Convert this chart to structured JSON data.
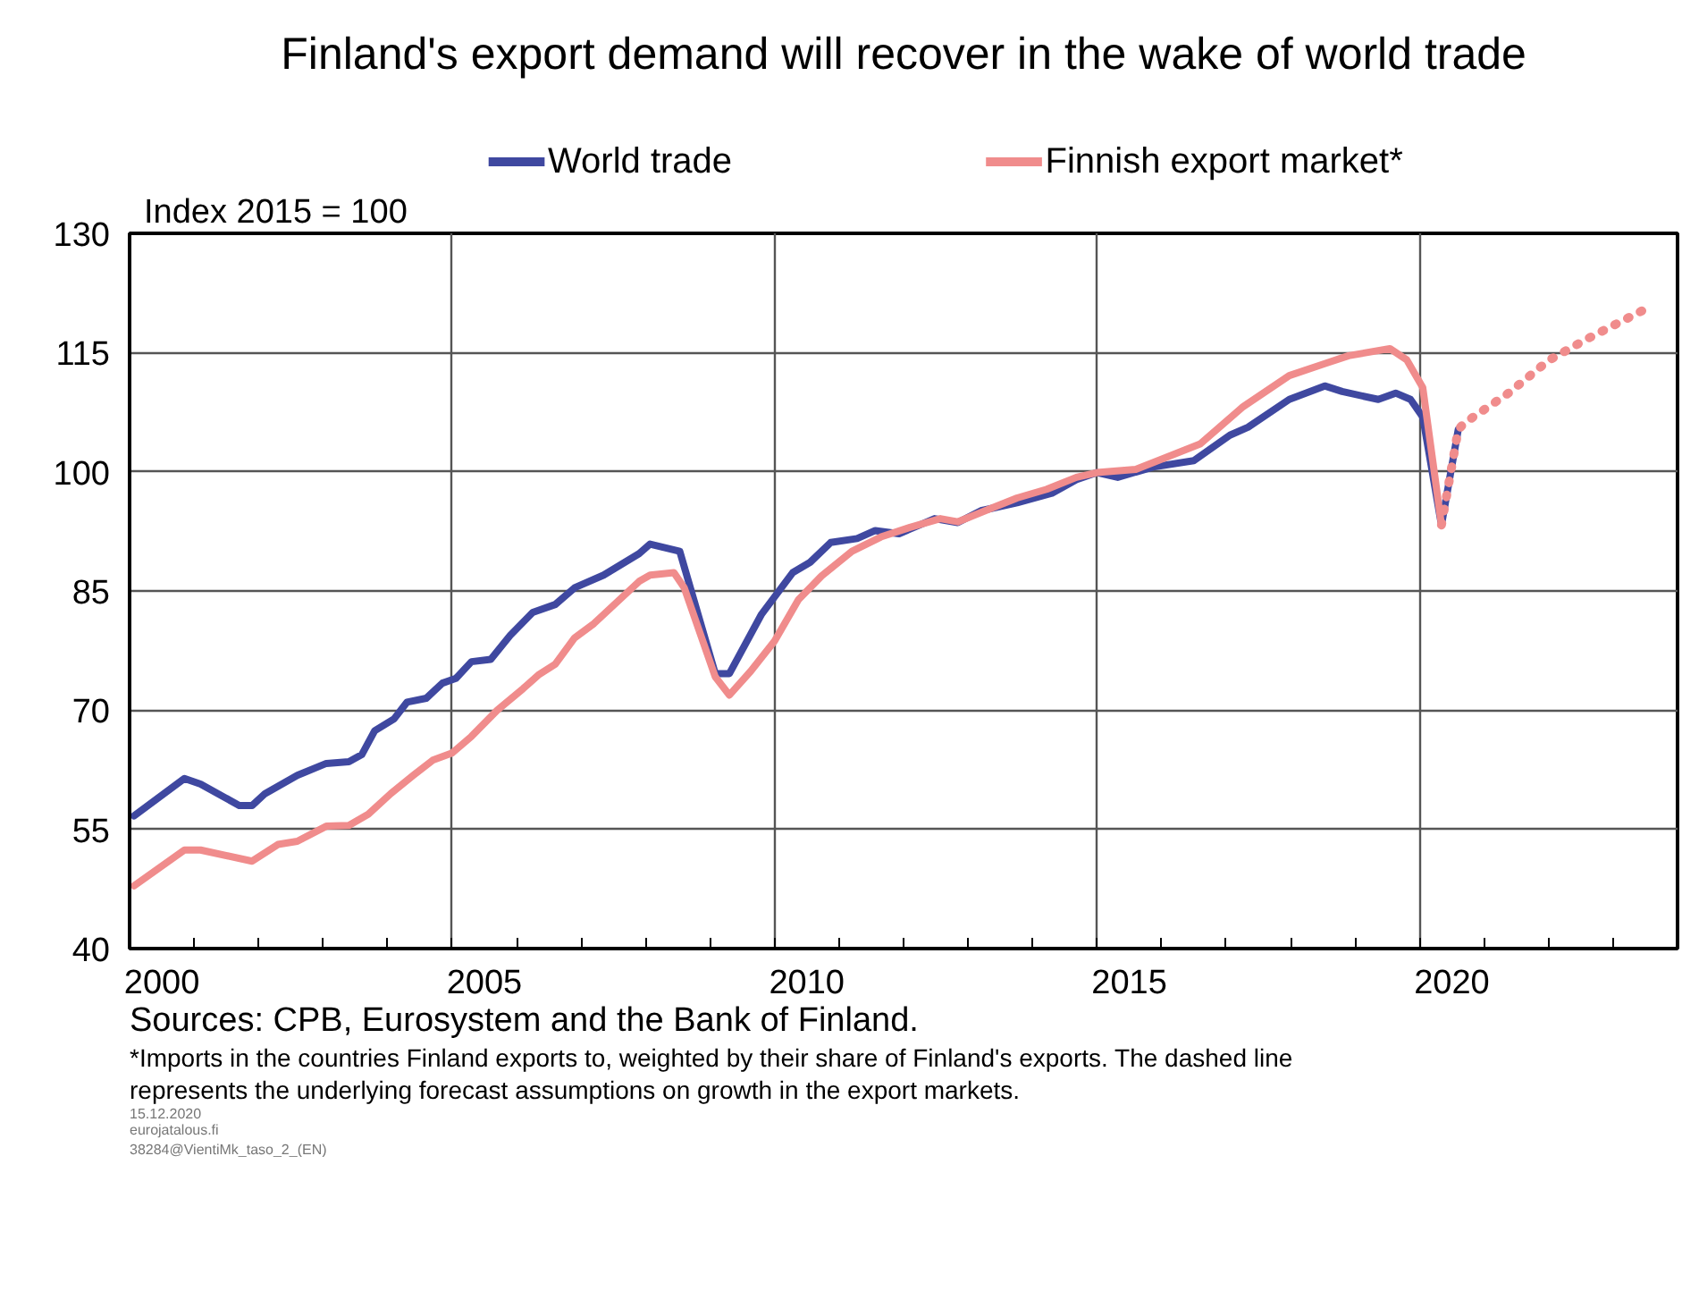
{
  "chart_data": {
    "type": "line",
    "title": "Finland's export demand will recover in the wake of world trade",
    "ylabel": "Index 2015 = 100",
    "annotations": [
      "Sources: CPB, Eurosystem and the Bank of Finland.",
      "*Imports in the countries Finland exports to, weighted by their share of Finland's exports. The dashed line represents the underlying forecast assumptions on growth in the export markets.",
      "15.12.2020",
      "eurojatalous.fi",
      "38284@VientiMk_taso_2_(EN)"
    ],
    "xlim": [
      2000,
      2024
    ],
    "ylim": [
      40,
      130
    ],
    "yticks": [
      40,
      55,
      70,
      85,
      100,
      115,
      130
    ],
    "xticks": [
      {
        "value": 2000.5,
        "label": "2000"
      },
      {
        "value": 2005.5,
        "label": "2005"
      },
      {
        "value": 2010.5,
        "label": "2010"
      },
      {
        "value": 2015.5,
        "label": "2015"
      },
      {
        "value": 2020.5,
        "label": "2020"
      },
      {
        "value": 2001,
        "label": null
      },
      {
        "value": 2002,
        "label": null
      },
      {
        "value": 2003,
        "label": null
      },
      {
        "value": 2004,
        "label": null
      },
      {
        "value": 2005,
        "label": null
      },
      {
        "value": 2006,
        "label": null
      },
      {
        "value": 2007,
        "label": null
      },
      {
        "value": 2008,
        "label": null
      },
      {
        "value": 2009,
        "label": null
      },
      {
        "value": 2010,
        "label": null
      },
      {
        "value": 2011,
        "label": null
      },
      {
        "value": 2012,
        "label": null
      },
      {
        "value": 2013,
        "label": null
      },
      {
        "value": 2014,
        "label": null
      },
      {
        "value": 2015,
        "label": null
      },
      {
        "value": 2016,
        "label": null
      },
      {
        "value": 2017,
        "label": null
      },
      {
        "value": 2018,
        "label": null
      },
      {
        "value": 2019,
        "label": null
      },
      {
        "value": 2020,
        "label": null
      },
      {
        "value": 2021,
        "label": null
      },
      {
        "value": 2022,
        "label": null
      },
      {
        "value": 2023,
        "label": null
      }
    ],
    "grid": true,
    "legend": "top",
    "marker": "none",
    "series": [
      {
        "name": "World trade",
        "color": "#3f48a0",
        "line_style": "solid",
        "x": [
          2000.07,
          2000.85,
          2001.1,
          2001.7,
          2001.9,
          2002.1,
          2002.6,
          2003.05,
          2003.4,
          2003.6,
          2003.8,
          2004.1,
          2004.3,
          2004.6,
          2004.85,
          2005.06,
          2005.3,
          2005.6,
          2005.9,
          2006.25,
          2006.6,
          2006.9,
          2007.35,
          2007.9,
          2008.07,
          2008.53,
          2009.08,
          2009.3,
          2009.8,
          2010.28,
          2010.55,
          2010.87,
          2011.28,
          2011.56,
          2011.93,
          2012.48,
          2012.84,
          2013.2,
          2013.76,
          2014.3,
          2014.68,
          2015.0,
          2015.32,
          2015.87,
          2016.5,
          2017.06,
          2017.34,
          2017.98,
          2018.53,
          2018.8,
          2019.36,
          2019.63,
          2019.86,
          2020.05,
          2020.34,
          2020.6
        ],
        "values": [
          56.7,
          61.4,
          60.7,
          58.0,
          58.0,
          59.5,
          61.8,
          63.3,
          63.5,
          64.4,
          67.4,
          68.9,
          71.0,
          71.5,
          73.4,
          74.0,
          76.1,
          76.4,
          79.4,
          82.3,
          83.3,
          85.4,
          87.0,
          89.7,
          90.9,
          90.0,
          74.6,
          74.6,
          82.1,
          87.3,
          88.6,
          91.1,
          91.6,
          92.6,
          92.2,
          94.1,
          93.6,
          95.1,
          96.1,
          97.3,
          99.0,
          99.9,
          99.3,
          100.6,
          101.4,
          104.6,
          105.6,
          109.1,
          110.8,
          110.1,
          109.1,
          109.9,
          109.1,
          106.9,
          93.3,
          105.3
        ]
      },
      {
        "name": "Finnish export market*",
        "color": "#f08c8c",
        "line_style": "solid",
        "x": [
          2000.07,
          2000.85,
          2001.1,
          2001.9,
          2002.3,
          2002.6,
          2003.05,
          2003.4,
          2003.7,
          2004.05,
          2004.4,
          2004.7,
          2005.0,
          2005.3,
          2005.7,
          2006.1,
          2006.35,
          2006.6,
          2006.9,
          2007.2,
          2007.9,
          2008.07,
          2008.44,
          2008.6,
          2009.08,
          2009.3,
          2009.63,
          2010.0,
          2010.37,
          2010.73,
          2011.2,
          2011.65,
          2012.1,
          2012.57,
          2012.84,
          2013.3,
          2013.76,
          2014.22,
          2014.68,
          2015.0,
          2015.6,
          2016.6,
          2017.25,
          2017.98,
          2018.53,
          2018.9,
          2019.54,
          2019.8,
          2020.05,
          2020.34
        ],
        "values": [
          47.9,
          52.4,
          52.4,
          51.0,
          53.1,
          53.5,
          55.4,
          55.5,
          56.9,
          59.5,
          61.8,
          63.7,
          64.6,
          66.7,
          70.0,
          72.7,
          74.5,
          75.8,
          79.1,
          80.9,
          86.2,
          87.0,
          87.3,
          85.4,
          74.2,
          71.9,
          74.9,
          78.7,
          83.9,
          86.9,
          90.0,
          91.8,
          93.0,
          94.1,
          93.7,
          95.2,
          96.7,
          97.8,
          99.3,
          99.9,
          100.3,
          103.5,
          108.1,
          112.1,
          113.6,
          114.6,
          115.5,
          114.1,
          110.6,
          93.3
        ]
      },
      {
        "color": "#f08c8c",
        "line_style": "dotted",
        "x": [
          2020.34,
          2020.6,
          2020.69,
          2021.38,
          2022.0,
          2022.57,
          2023.58
        ],
        "values": [
          93.3,
          105.3,
          106.1,
          109.9,
          114.0,
          116.6,
          120.8
        ]
      }
    ]
  }
}
